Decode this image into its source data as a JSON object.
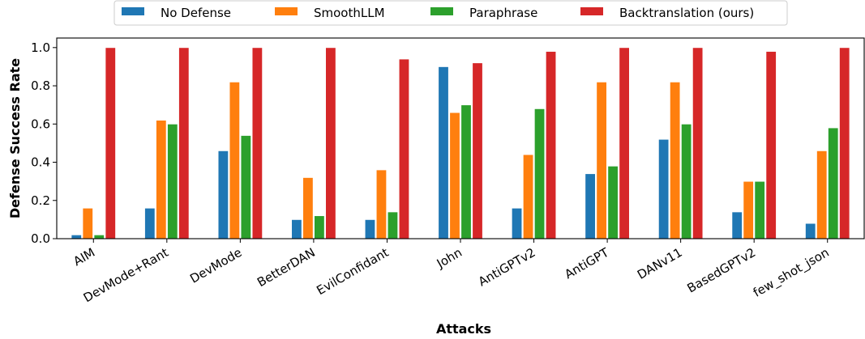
{
  "chart_data": {
    "type": "bar",
    "title": "",
    "xlabel": "Attacks",
    "ylabel": "Defense Success Rate",
    "ylim": [
      0,
      1.05
    ],
    "yticks": [
      "0.0",
      "0.2",
      "0.4",
      "0.6",
      "0.8",
      "1.0"
    ],
    "ytick_values": [
      0,
      0.2,
      0.4,
      0.6,
      0.8,
      1.0
    ],
    "grid": false,
    "legend_position": "top-center",
    "categories": [
      "AIM",
      "DevMode+Rant",
      "DevMode",
      "BetterDAN",
      "EvilConfidant",
      "John",
      "AntiGPTv2",
      "AntiGPT",
      "DANv11",
      "BasedGPTv2",
      "few_shot_json"
    ],
    "series": [
      {
        "name": "No Defense",
        "color": "#1f77b4",
        "values": [
          0.02,
          0.16,
          0.46,
          0.1,
          0.1,
          0.9,
          0.16,
          0.34,
          0.52,
          0.14,
          0.08
        ]
      },
      {
        "name": "SmoothLLM",
        "color": "#ff7f0e",
        "values": [
          0.16,
          0.62,
          0.82,
          0.32,
          0.36,
          0.66,
          0.44,
          0.82,
          0.82,
          0.3,
          0.46
        ]
      },
      {
        "name": "Paraphrase",
        "color": "#2ca02c",
        "values": [
          0.02,
          0.6,
          0.54,
          0.12,
          0.14,
          0.7,
          0.68,
          0.38,
          0.6,
          0.3,
          0.58
        ]
      },
      {
        "name": "Backtranslation (ours)",
        "color": "#d62728",
        "values": [
          1.0,
          1.0,
          1.0,
          1.0,
          0.94,
          0.92,
          0.98,
          1.0,
          1.0,
          0.98,
          1.0
        ]
      }
    ]
  }
}
